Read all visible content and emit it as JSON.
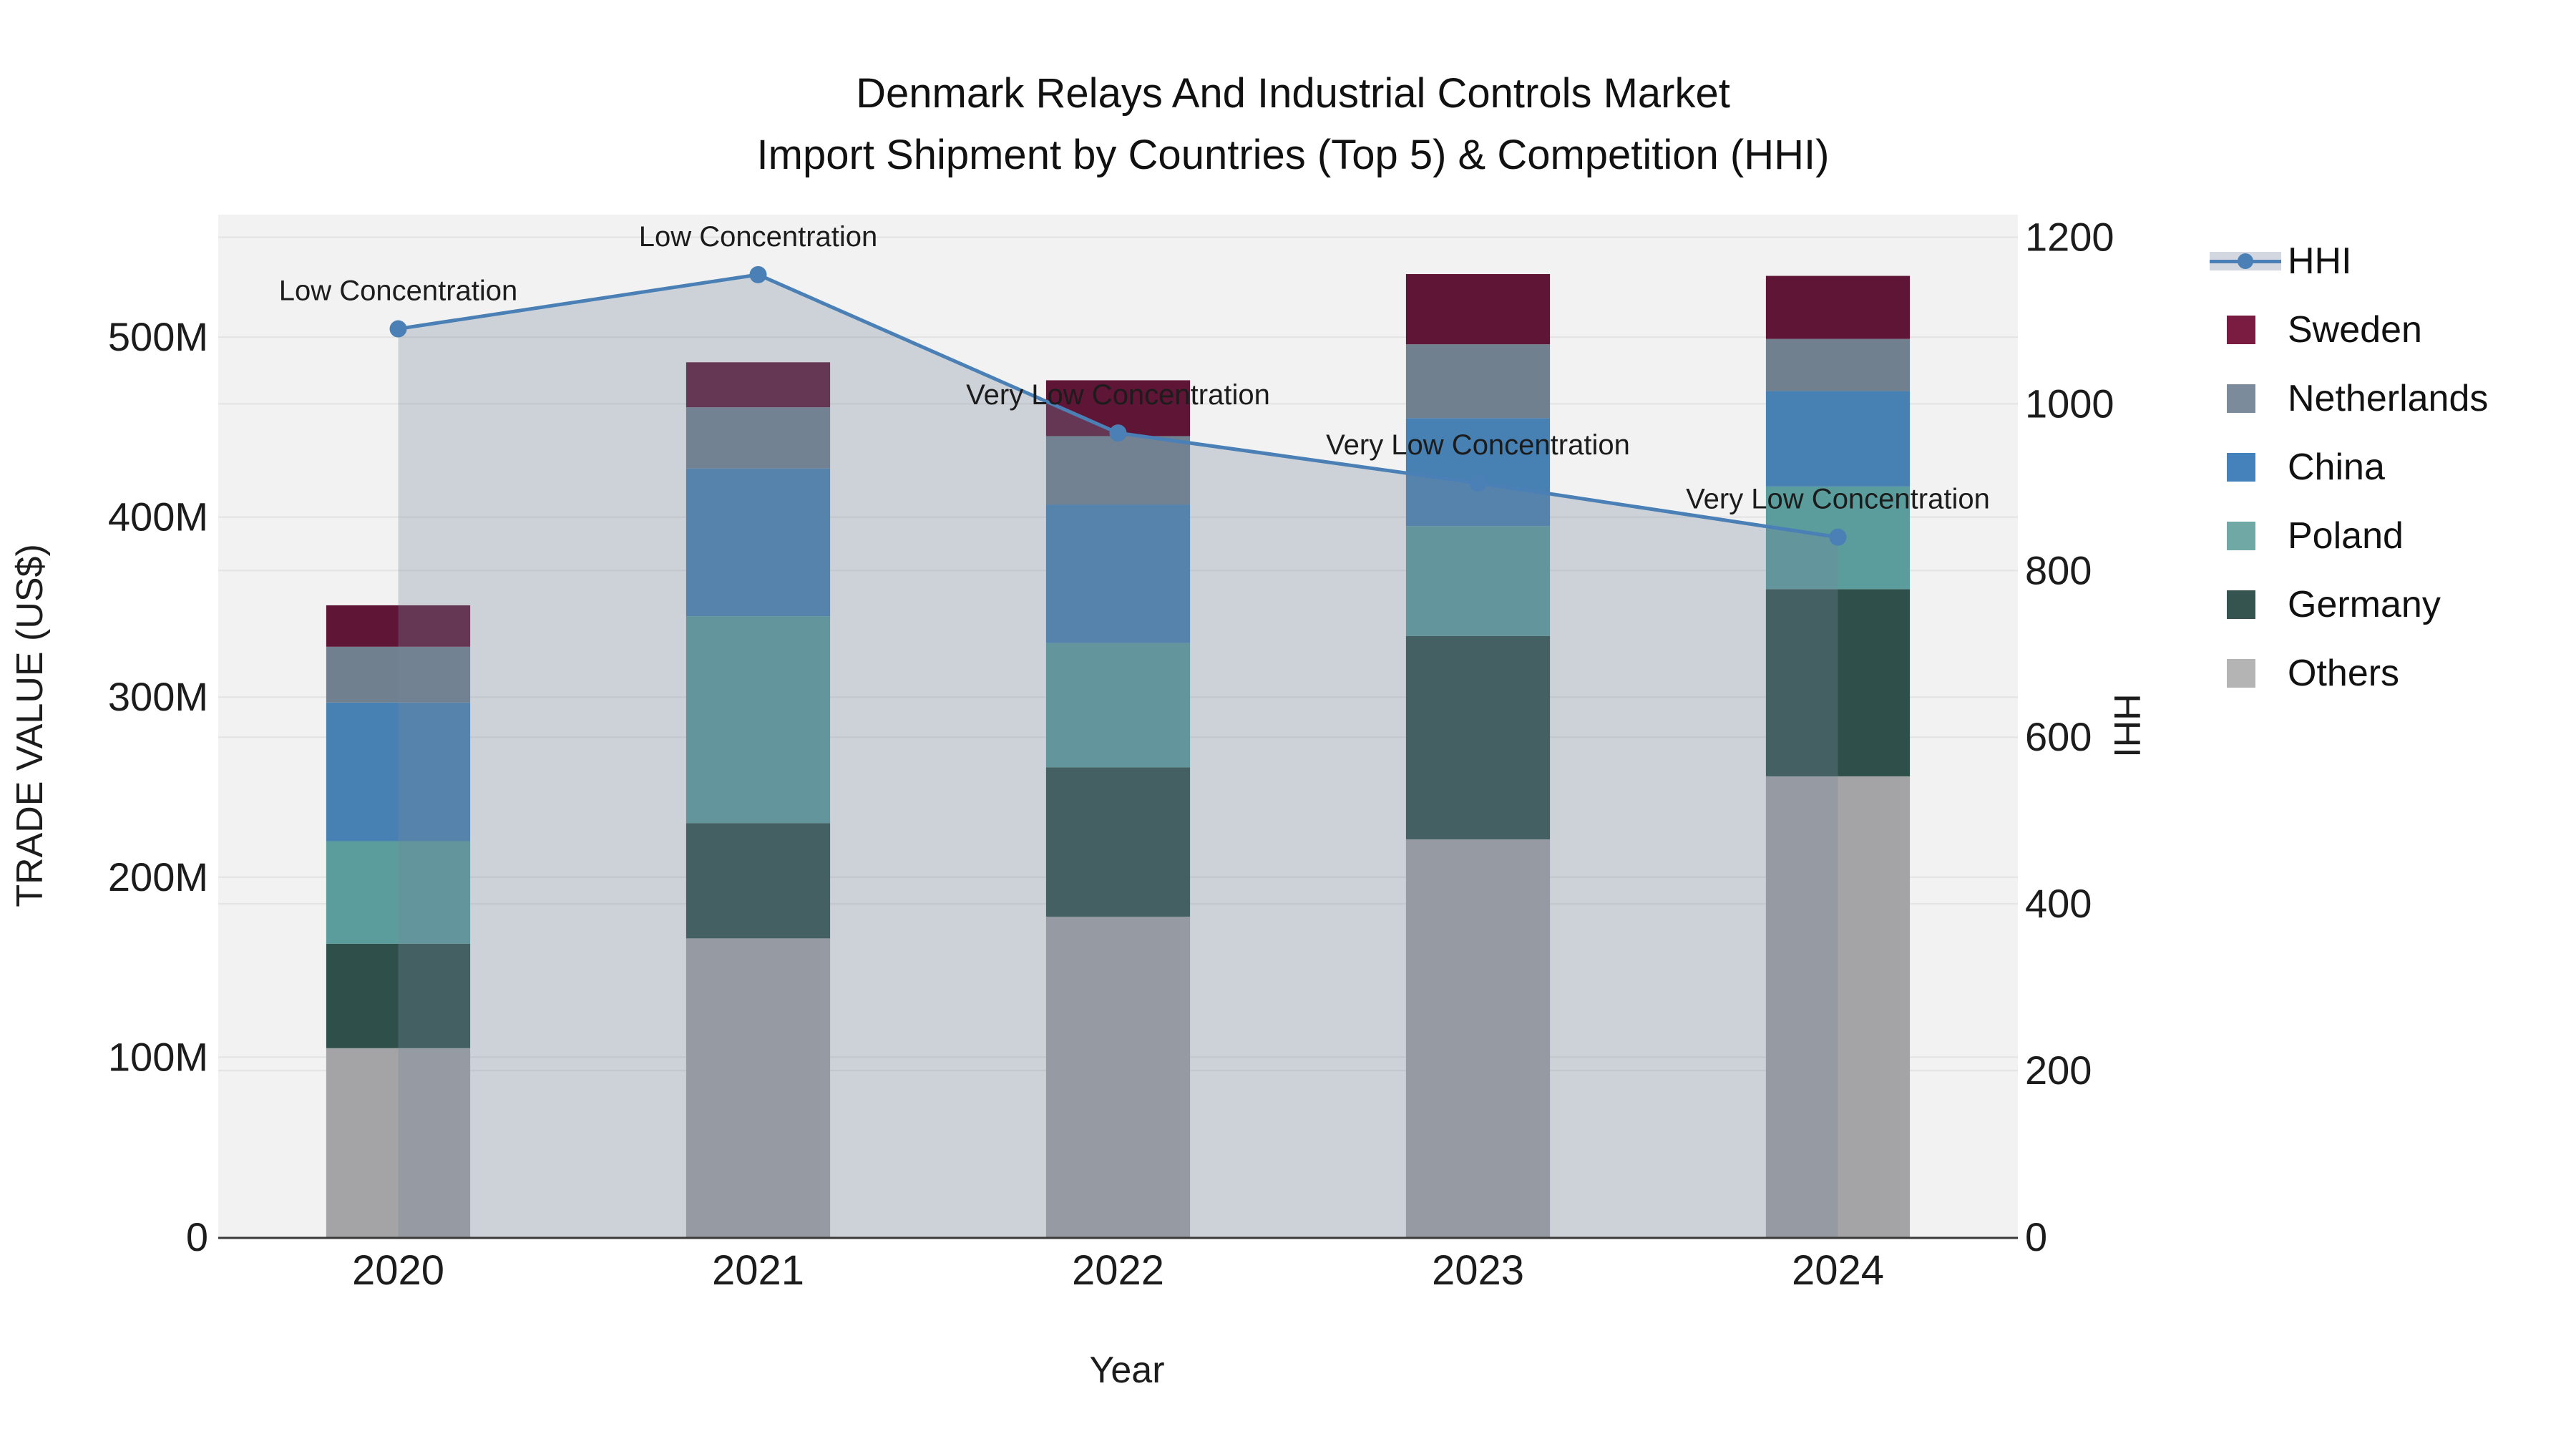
{
  "title": {
    "line1": "Denmark Relays And Industrial Controls Market",
    "line2": "Import Shipment by Countries (Top 5) & Competition (HHI)"
  },
  "axes": {
    "x": {
      "title": "Year",
      "tick_labels": [
        "2020",
        "2021",
        "2022",
        "2023",
        "2024"
      ]
    },
    "y_left": {
      "title": "TRADE VALUE (US$)",
      "tick_labels": [
        "0",
        "100M",
        "200M",
        "300M",
        "400M",
        "500M"
      ],
      "tick_values_musd": [
        0,
        100,
        200,
        300,
        400,
        500
      ]
    },
    "y_right": {
      "title": "HHI",
      "tick_labels": [
        "0",
        "200",
        "400",
        "600",
        "800",
        "1000",
        "1200"
      ],
      "tick_values": [
        0,
        200,
        400,
        600,
        800,
        1000,
        1200
      ]
    }
  },
  "legend": {
    "items": [
      {
        "label": "HHI",
        "type": "line",
        "color": "#4A80B5",
        "band_color": "#D3D8E0"
      },
      {
        "label": "Sweden",
        "type": "square",
        "color": "#7A1B42"
      },
      {
        "label": "Netherlands",
        "type": "square",
        "color": "#7C8B9B"
      },
      {
        "label": "China",
        "type": "square",
        "color": "#4582BC"
      },
      {
        "label": "Poland",
        "type": "square",
        "color": "#6FA8A4"
      },
      {
        "label": "Germany",
        "type": "square",
        "color": "#36544F"
      },
      {
        "label": "Others",
        "type": "square",
        "color": "#B4B4B4"
      }
    ]
  },
  "chart_data": {
    "type": "bar+line",
    "subtype": "stacked bars (trade value, left axis) with HHI line+area (right axis)",
    "categories": [
      "2020",
      "2021",
      "2022",
      "2023",
      "2024"
    ],
    "bar_value_unit": "million US$",
    "series": [
      {
        "name": "Others",
        "bar_color": "#A4A4A6",
        "values": [
          105,
          166,
          178,
          221,
          256
        ]
      },
      {
        "name": "Germany",
        "bar_color": "#2F4F4A",
        "values": [
          58,
          64,
          83,
          113,
          104
        ]
      },
      {
        "name": "Poland",
        "bar_color": "#5B9D9D",
        "values": [
          57,
          115,
          69,
          61,
          57
        ]
      },
      {
        "name": "China",
        "bar_color": "#4781B4",
        "values": [
          77,
          82,
          77,
          60,
          53
        ]
      },
      {
        "name": "Netherlands",
        "bar_color": "#70808F",
        "values": [
          31,
          34,
          38,
          41,
          29
        ]
      },
      {
        "name": "Sweden",
        "bar_color": "#5F1535",
        "values": [
          23,
          25,
          31,
          39,
          35
        ]
      }
    ],
    "line": {
      "name": "HHI",
      "color": "#4A80B5",
      "fill_color": "rgba(120,135,155,0.30)",
      "values": [
        1090,
        1155,
        965,
        905,
        840
      ],
      "annotations": [
        "Low Concentration",
        "Low Concentration",
        "Very Low Concentration",
        "Very Low Concentration",
        "Very Low Concentration"
      ]
    },
    "ylim_left_musd": [
      0,
      568
    ],
    "ylim_right": [
      0,
      1227
    ],
    "grid": true,
    "legend_position": "right"
  },
  "colors": {
    "plot_bg": "#F2F2F2",
    "grid": "#E3E3E3",
    "axis_line": "#3A3A3A",
    "text": "#1C1C1C",
    "annotation_text": "#1C1C1C"
  }
}
